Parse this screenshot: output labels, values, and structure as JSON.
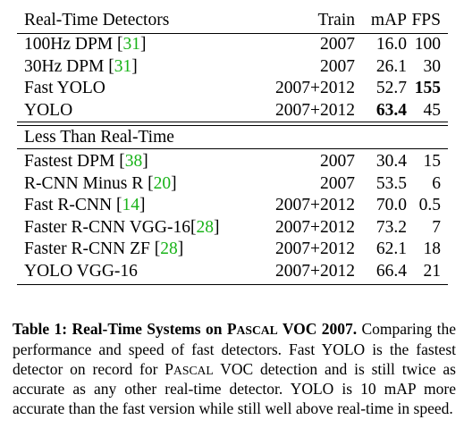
{
  "table": {
    "header": {
      "name": "Real-Time Detectors",
      "train": "Train",
      "map": "mAP",
      "fps": "FPS"
    },
    "realtime_rows": [
      {
        "name": "100Hz DPM ",
        "ref": "31",
        "train": "2007",
        "map": "16.0",
        "fps": "100",
        "bold_map": false,
        "bold_fps": false
      },
      {
        "name": "30Hz DPM ",
        "ref": "31",
        "train": "2007",
        "map": "26.1",
        "fps": "30",
        "bold_map": false,
        "bold_fps": false
      },
      {
        "name": "Fast YOLO",
        "ref": "",
        "train": "2007+2012",
        "map": "52.7",
        "fps": "155",
        "bold_map": false,
        "bold_fps": true
      },
      {
        "name": "YOLO",
        "ref": "",
        "train": "2007+2012",
        "map": "63.4",
        "fps": "45",
        "bold_map": true,
        "bold_fps": false
      }
    ],
    "section2_title": "Less Than Real-Time",
    "slow_rows": [
      {
        "name": "Fastest DPM ",
        "ref": "38",
        "train": "2007",
        "map": "30.4",
        "fps": "15"
      },
      {
        "name": "R-CNN Minus R ",
        "ref": "20",
        "train": "2007",
        "map": "53.5",
        "fps": "6"
      },
      {
        "name": "Fast R-CNN ",
        "ref": "14",
        "train": "2007+2012",
        "map": "70.0",
        "fps": "0.5"
      },
      {
        "name": "Faster R-CNN VGG-16",
        "ref": "28",
        "train": "2007+2012",
        "map": "73.2",
        "fps": "7"
      },
      {
        "name": "Faster R-CNN ZF ",
        "ref": "28",
        "train": "2007+2012",
        "map": "62.1",
        "fps": "18"
      },
      {
        "name": "YOLO VGG-16",
        "ref": "",
        "train": "2007+2012",
        "map": "66.4",
        "fps": "21"
      }
    ]
  },
  "caption": {
    "label": "Table 1:",
    "title_pre": "Real-Time Systems on ",
    "title_dataset": "Pascal",
    "title_post": " VOC 2007.",
    "body_1": " Comparing the performance and speed of fast detectors. Fast YOLO is the fastest detector on record for ",
    "body_dataset": "Pascal",
    "body_2": " VOC detection and is still twice as accurate as any other real-time detector. YOLO is 10 mAP more accurate than the fast version while still well above real-time in speed."
  }
}
